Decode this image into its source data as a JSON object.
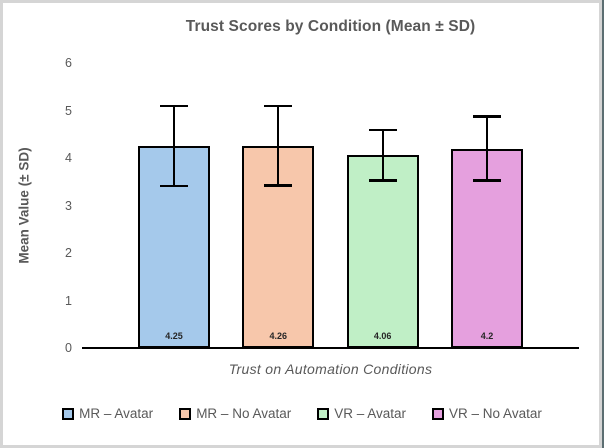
{
  "chart_data": {
    "type": "bar",
    "title": "Trust Scores by Condition (Mean ± SD)",
    "xlabel": "Trust on Automation Conditions",
    "ylabel": "Mean Value (± SD)",
    "categories": [
      "MR – Avatar",
      "MR – No Avatar",
      "VR – Avatar",
      "VR – No Avatar"
    ],
    "values": [
      4.25,
      4.26,
      4.06,
      4.2
    ],
    "errors": [
      0.84,
      0.84,
      0.53,
      0.67
    ],
    "data_labels": [
      "4.25",
      "4.26",
      "4.06",
      "4.2"
    ],
    "bar_colors": [
      "#A5C9EB",
      "#F7C7AB",
      "#C0EFC6",
      "#E5A0DE"
    ],
    "bar_border_color": "#000000",
    "error_bar_color": "#000000",
    "text_color": "#595959",
    "data_label_color": "#262626",
    "ylim": [
      0,
      6
    ],
    "yticks": [
      "0",
      "1",
      "2",
      "3",
      "4",
      "5",
      "6"
    ],
    "grid": false,
    "legend_position": "bottom"
  }
}
